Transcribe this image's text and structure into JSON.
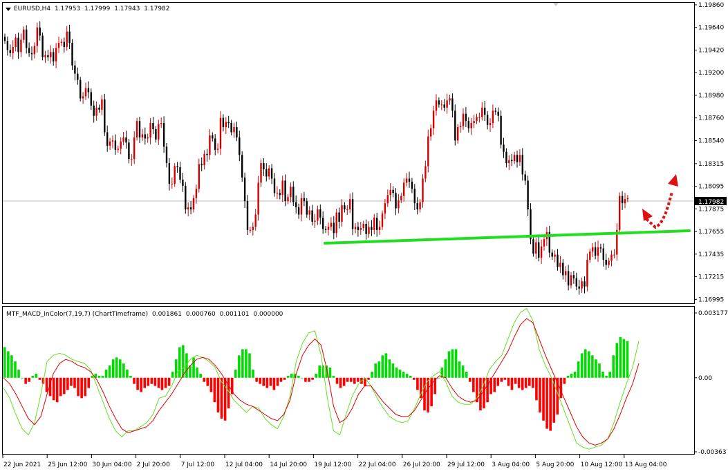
{
  "main_header": {
    "symbol": "EURUSD,H4",
    "open": "1.17953",
    "high": "1.17999",
    "low": "1.17943",
    "close": "1.17982"
  },
  "indicator_header": {
    "name": "MTF_MACD_inColor(7,19,7) (ChartTimeframe)",
    "values": [
      "0.001861",
      "0.000760",
      "0.001101",
      "0.000000"
    ]
  },
  "current_price_label": "1.17982",
  "colors": {
    "bull_candle": "#d40000",
    "bear_candle": "#000000",
    "support_line": "#22dd22",
    "arrow": "#dd1111",
    "hist_positive": "#00dd00",
    "hist_negative": "#ff0000",
    "macd_line": "#66dd22",
    "signal_line": "#dd0000",
    "price_line": "#bbbbbb",
    "frame": "#000000"
  },
  "chart_data": [
    {
      "type": "candlestick",
      "title": "EURUSD,H4",
      "ylim": [
        1.1695,
        1.1988
      ],
      "y_ticks": [
        "1.19860",
        "1.19640",
        "1.19420",
        "1.19200",
        "1.18980",
        "1.18760",
        "1.18540",
        "1.18315",
        "1.18095",
        "1.17875",
        "1.17655",
        "1.17435",
        "1.17215",
        "1.16995"
      ],
      "x_ticks": [
        "22 Jun 2021",
        "25 Jun 12:00",
        "30 Jun 04:00",
        "2 Jul 20:00",
        "7 Jul 12:00",
        "12 Jul 04:00",
        "14 Jul 20:00",
        "19 Jul 12:00",
        "22 Jul 04:00",
        "26 Jul 20:00",
        "29 Jul 12:00",
        "3 Aug 04:00",
        "5 Aug 20:00",
        "10 Aug 12:00",
        "13 Aug 04:00"
      ],
      "last_price": 1.17982,
      "close_series": [
        1.1951,
        1.1942,
        1.1939,
        1.1945,
        1.1954,
        1.194,
        1.1952,
        1.1962,
        1.1944,
        1.1939,
        1.1938,
        1.1946,
        1.1964,
        1.1956,
        1.1935,
        1.1937,
        1.1935,
        1.194,
        1.1931,
        1.1944,
        1.1949,
        1.195,
        1.1945,
        1.196,
        1.1949,
        1.1927,
        1.1919,
        1.1913,
        1.1895,
        1.1897,
        1.1905,
        1.1901,
        1.1888,
        1.1878,
        1.1886,
        1.1884,
        1.1894,
        1.1862,
        1.1849,
        1.1853,
        1.1854,
        1.1845,
        1.1846,
        1.1853,
        1.1857,
        1.1852,
        1.1836,
        1.1836,
        1.1857,
        1.1873,
        1.1857,
        1.186,
        1.1856,
        1.1857,
        1.1871,
        1.1865,
        1.1855,
        1.187,
        1.1871,
        1.1848,
        1.1832,
        1.1812,
        1.1812,
        1.1829,
        1.1828,
        1.1816,
        1.181,
        1.1787,
        1.1789,
        1.1787,
        1.1798,
        1.1807,
        1.1831,
        1.183,
        1.1841,
        1.184,
        1.1859,
        1.1856,
        1.1845,
        1.1846,
        1.1876,
        1.1867,
        1.1872,
        1.1871,
        1.1862,
        1.1867,
        1.1857,
        1.184,
        1.1818,
        1.1795,
        1.1767,
        1.1767,
        1.177,
        1.1782,
        1.1813,
        1.1832,
        1.1826,
        1.1819,
        1.1827,
        1.1817,
        1.1803,
        1.1803,
        1.1801,
        1.1815,
        1.1795,
        1.1799,
        1.1809,
        1.1794,
        1.1789,
        1.1782,
        1.1798,
        1.1795,
        1.1782,
        1.1786,
        1.1775,
        1.1776,
        1.1787,
        1.1779,
        1.1768,
        1.1767,
        1.177,
        1.1774,
        1.1764,
        1.1784,
        1.1775,
        1.1791,
        1.1787,
        1.1787,
        1.1797,
        1.1768,
        1.177,
        1.1767,
        1.1769,
        1.1773,
        1.1763,
        1.177,
        1.1767,
        1.1779,
        1.1767,
        1.177,
        1.1783,
        1.1793,
        1.1801,
        1.1806,
        1.1803,
        1.1788,
        1.1796,
        1.18,
        1.1813,
        1.1817,
        1.1814,
        1.1807,
        1.1793,
        1.1787,
        1.1794,
        1.1817,
        1.1829,
        1.1858,
        1.1866,
        1.1883,
        1.1893,
        1.1889,
        1.1889,
        1.1886,
        1.1893,
        1.1895,
        1.1883,
        1.1854,
        1.1867,
        1.1868,
        1.188,
        1.1873,
        1.1866,
        1.1871,
        1.1873,
        1.1877,
        1.1877,
        1.1886,
        1.1879,
        1.1869,
        1.1871,
        1.1883,
        1.1882,
        1.1878,
        1.185,
        1.1843,
        1.1832,
        1.1835,
        1.1834,
        1.184,
        1.1833,
        1.184,
        1.1821,
        1.1815,
        1.1787,
        1.1758,
        1.1744,
        1.1755,
        1.174,
        1.1751,
        1.1758,
        1.1765,
        1.1745,
        1.1741,
        1.1743,
        1.1731,
        1.1735,
        1.1723,
        1.1727,
        1.1713,
        1.1723,
        1.172,
        1.1712,
        1.171,
        1.1717,
        1.1712,
        1.1738,
        1.1746,
        1.175,
        1.1742,
        1.175,
        1.1749,
        1.1738,
        1.1733,
        1.1737,
        1.1743,
        1.1743,
        1.1767,
        1.18,
        1.1793,
        1.1797,
        1.1798
      ],
      "annotations": [
        "green support trendline",
        "red dotted upward arrow"
      ]
    },
    {
      "type": "bar",
      "title": "MTF_MACD_inColor(7,19,7) (ChartTimeframe)",
      "ylim": [
        -0.00363,
        0.003177
      ],
      "y_ticks": [
        "0.003177",
        "0.00",
        "-0.00363"
      ],
      "series": [
        {
          "name": "Histogram",
          "values": [
            0.0015,
            0.0013,
            0.0011,
            0.0008,
            0.0004,
            0.0,
            -0.0003,
            -0.0002,
            0.0001,
            0.0002,
            -0.0001,
            -0.0003,
            -0.0007,
            -0.0009,
            -0.0011,
            -0.0012,
            -0.0009,
            -0.0008,
            -0.0006,
            -0.0004,
            -0.0005,
            -0.0009,
            -0.001,
            -0.0009,
            -0.0005,
            0.0001,
            0.0002,
            0.0001,
            0.0001,
            0.0004,
            0.0006,
            0.0009,
            0.001,
            0.0009,
            0.0007,
            0.0004,
            0.0001,
            -0.0003,
            -0.0006,
            -0.0007,
            -0.0005,
            -0.0004,
            -0.0003,
            -0.0004,
            -0.0005,
            -0.0006,
            -0.0005,
            -0.0004,
            0.0003,
            0.0009,
            0.0015,
            0.0016,
            0.0012,
            0.0006,
            0.001,
            0.0005,
            0.0002,
            -0.0002,
            -0.0004,
            -0.0007,
            -0.0012,
            -0.0017,
            -0.002,
            -0.0021,
            -0.0015,
            -0.0008,
            0.0004,
            0.0011,
            0.0014,
            0.0014,
            0.0012,
            0.0004,
            -0.0002,
            -0.0003,
            -0.0004,
            -0.0005,
            -0.0004,
            -0.0006,
            -0.0004,
            -0.0002,
            -0.0001,
            0.0001,
            0.0002,
            0.0002,
            0.0001,
            0.0,
            -0.0002,
            -0.0002,
            -0.0001,
            0.0002,
            0.0006,
            0.0006,
            0.0006,
            0.0005,
            0.0001,
            -0.0003,
            -0.0005,
            -0.0004,
            -0.0002,
            -0.0002,
            -0.0003,
            -0.0002,
            -0.0003,
            -0.0004,
            -0.0001,
            0.0003,
            0.0007,
            0.0008,
            0.0011,
            0.0012,
            0.0009,
            0.0007,
            0.0005,
            0.0004,
            0.0003,
            0.0002,
            0.0001,
            -0.0001,
            -0.0006,
            -0.001,
            -0.0016,
            -0.0017,
            -0.0014,
            -0.0008,
            0.0,
            0.0005,
            0.0009,
            0.0013,
            0.0014,
            0.0014,
            0.0008,
            0.0006,
            0.0003,
            -0.0002,
            -0.0007,
            -0.0012,
            -0.0016,
            -0.0015,
            -0.0012,
            -0.0008,
            -0.0007,
            -0.0004,
            -0.0002,
            -0.0001,
            -0.0004,
            -0.0006,
            -0.0003,
            -0.0005,
            -0.0006,
            -0.0005,
            -0.0004,
            -0.0005,
            -0.0011,
            -0.0017,
            -0.0021,
            -0.0025,
            -0.0026,
            -0.0022,
            -0.0018,
            -0.001,
            -0.0003,
            0.0001,
            0.0002,
            0.0003,
            0.0008,
            0.0012,
            0.0014,
            0.0013,
            0.0011,
            0.0009,
            0.0007,
            0.0003,
            0.0001,
            0.0003,
            0.0011,
            0.0017,
            0.002,
            0.0019,
            0.0018
          ]
        },
        {
          "name": "MACD",
          "values": [
            -0.0005,
            -0.001,
            -0.0018,
            -0.0025,
            -0.0028,
            -0.0022,
            -0.0008,
            0.0008,
            0.0011,
            0.0012,
            0.0011,
            0.0009,
            0.0008,
            0.0007,
            0.0004,
            -0.0004,
            -0.0012,
            -0.002,
            -0.0026,
            -0.0029,
            -0.0026,
            -0.0026,
            -0.0024,
            -0.0022,
            -0.0018,
            -0.001,
            -0.0009,
            -0.0004,
            0.0003,
            0.0005,
            0.0009,
            0.0011,
            0.001,
            0.0008,
            0.0005,
            -0.0002,
            -0.0006,
            -0.0011,
            -0.0014,
            -0.0017,
            -0.0014,
            -0.0015,
            -0.002,
            -0.0023,
            -0.0025,
            -0.0019,
            -0.0009,
            0.0008,
            0.0017,
            0.0022,
            0.0023,
            0.0011,
            -0.001,
            -0.0026,
            -0.0028,
            -0.0018,
            -0.0009,
            -0.0003,
            0.0,
            -0.0004,
            -0.001,
            -0.0015,
            -0.0019,
            -0.0021,
            -0.0022,
            -0.0021,
            -0.0015,
            -0.0008,
            -0.0002,
            0.0001,
            0.0003,
            -0.0002,
            -0.0009,
            -0.0012,
            -0.0013,
            -0.0013,
            -0.001,
            -0.0004,
            0.0004,
            0.0008,
            0.0011,
            0.0019,
            0.0027,
            0.0032,
            0.0034,
            0.0028,
            0.0014,
            0.0006,
            0.0,
            -0.0008,
            -0.0016,
            -0.0024,
            -0.0032,
            -0.0034,
            -0.0035,
            -0.0034,
            -0.0033,
            -0.003,
            -0.0022,
            -0.0012,
            -0.0003,
            0.0005,
            0.0018
          ]
        },
        {
          "name": "Signal",
          "values": [
            0.0,
            -0.0003,
            -0.0008,
            -0.0014,
            -0.002,
            -0.0023,
            -0.0019,
            -0.0008,
            0.0002,
            0.0007,
            0.0009,
            0.0008,
            0.0006,
            0.0005,
            0.0003,
            -0.0001,
            -0.0007,
            -0.0014,
            -0.002,
            -0.0025,
            -0.0027,
            -0.0026,
            -0.0025,
            -0.0024,
            -0.0021,
            -0.0016,
            -0.0012,
            -0.0008,
            -0.0003,
            0.0002,
            0.0006,
            0.0009,
            0.001,
            0.0009,
            0.0006,
            0.0002,
            -0.0003,
            -0.0008,
            -0.0011,
            -0.0013,
            -0.0014,
            -0.0016,
            -0.0018,
            -0.002,
            -0.0021,
            -0.0018,
            -0.0011,
            0.0002,
            0.0011,
            0.0016,
            0.0019,
            0.0016,
            0.0003,
            -0.0014,
            -0.0022,
            -0.002,
            -0.0015,
            -0.0008,
            -0.0004,
            -0.0004,
            -0.0008,
            -0.0012,
            -0.0015,
            -0.0018,
            -0.0019,
            -0.0019,
            -0.0016,
            -0.0011,
            -0.0006,
            -0.0002,
            0.0001,
            0.0,
            -0.0005,
            -0.0009,
            -0.0011,
            -0.0012,
            -0.0011,
            -0.0007,
            -0.0002,
            0.0003,
            0.0008,
            0.0013,
            0.002,
            0.0026,
            0.0029,
            0.0027,
            0.0019,
            0.0011,
            0.0004,
            -0.0003,
            -0.001,
            -0.0017,
            -0.0024,
            -0.0029,
            -0.0032,
            -0.0033,
            -0.0032,
            -0.003,
            -0.0025,
            -0.0018,
            -0.001,
            -0.0003,
            0.0007
          ]
        }
      ]
    }
  ]
}
